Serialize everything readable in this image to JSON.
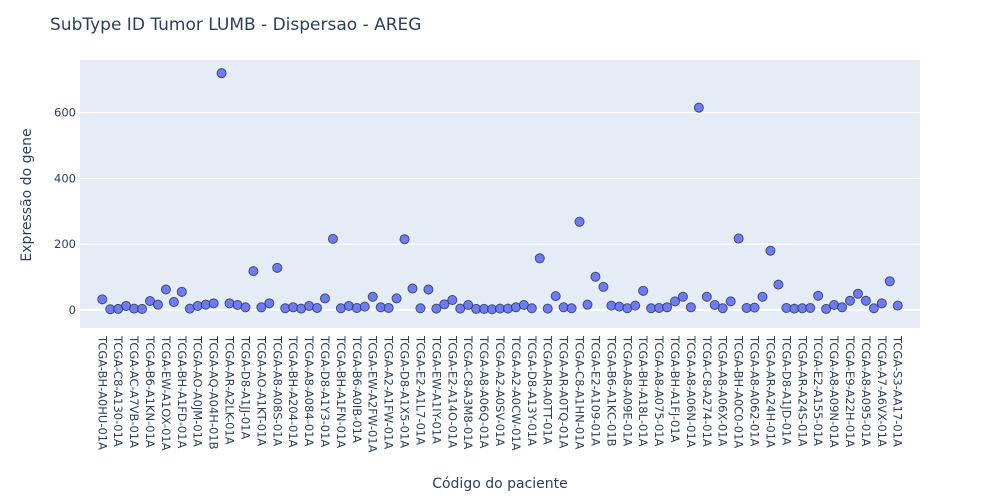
{
  "chart_data": {
    "type": "scatter",
    "title": "SubType ID Tumor LUMB - Dispersao - AREG",
    "xlabel": "Código do paciente",
    "ylabel": "Expressão do gene",
    "ylim": [
      -55,
      760
    ],
    "yticks": [
      0,
      200,
      400,
      600
    ],
    "grid": true,
    "legend": "none",
    "marker_color": "#636efa",
    "plot_bgcolor": "#e5ecf6",
    "tick_labels": [
      "TCGA-BH-A0HU-01A",
      "TCGA-C8-A130-01A",
      "TCGA-AC-A7VB-01A",
      "TCGA-B6-A1KN-01A",
      "TCGA-EW-A1OX-01A",
      "TCGA-BH-A1FD-01A",
      "TCGA-AO-A0JM-01A",
      "TCGA-AQ-A04H-01B",
      "TCGA-AR-A2LK-01A",
      "TCGA-D8-A1JJ-01A",
      "TCGA-AO-A1KT-01A",
      "TCGA-A8-A08S-01A",
      "TCGA-BH-A204-01A",
      "TCGA-A8-A084-01A",
      "TCGA-D8-A1Y3-01A",
      "TCGA-BH-A1FN-01A",
      "TCGA-B6-A0IB-01A",
      "TCGA-EW-A2FW-01A",
      "TCGA-A2-A1FW-01A",
      "TCGA-D8-A1X5-01A",
      "TCGA-E2-A1L7-01A",
      "TCGA-EW-A1IY-01A",
      "TCGA-E2-A14O-01A",
      "TCGA-C8-A3M8-01A",
      "TCGA-A8-A06Q-01A",
      "TCGA-A2-A0SV-01A",
      "TCGA-A2-A0CW-01A",
      "TCGA-D8-A13Y-01A",
      "TCGA-AR-A0TT-01A",
      "TCGA-AR-A0TQ-01A",
      "TCGA-C8-A1HN-01A",
      "TCGA-E2-A109-01A",
      "TCGA-B6-A1KC-01B",
      "TCGA-A8-A09E-01A",
      "TCGA-BH-A18L-01A",
      "TCGA-A8-A075-01A",
      "TCGA-BH-A1FJ-01A",
      "TCGA-A8-A06N-01A",
      "TCGA-C8-A274-01A",
      "TCGA-A8-A06X-01A",
      "TCGA-BH-A0C0-01A",
      "TCGA-A8-A062-01A",
      "TCGA-AR-A24H-01A",
      "TCGA-D8-A1JD-01A",
      "TCGA-AR-A24S-01A",
      "TCGA-E2-A155-01A",
      "TCGA-A8-A09N-01A",
      "TCGA-E9-A22H-01A",
      "TCGA-A8-A095-01A",
      "TCGA-A7-A6VX-01A",
      "TCGA-S3-AA17-01A"
    ],
    "x": [
      0,
      0.5,
      1,
      1.5,
      2,
      2.5,
      3,
      3.5,
      4,
      4.5,
      5,
      5.5,
      6,
      6.5,
      7,
      7.5,
      8,
      8.5,
      9,
      9.5,
      10,
      10.5,
      11,
      11.5,
      12,
      12.5,
      13,
      13.5,
      14,
      14.5,
      15,
      15.5,
      16,
      16.5,
      17,
      17.5,
      18,
      18.5,
      19,
      19.5,
      20,
      20.5,
      21,
      21.5,
      22,
      22.5,
      23,
      23.5,
      24,
      24.5,
      25,
      25.5,
      26,
      26.5,
      27,
      27.5,
      28,
      28.5,
      29,
      29.5,
      30,
      30.5,
      31,
      31.5,
      32,
      32.5,
      33,
      33.5,
      34,
      34.5,
      35,
      35.5,
      36,
      36.5,
      37,
      37.5,
      38,
      38.5,
      39,
      39.5,
      40,
      40.5,
      41,
      41.5,
      42,
      42.5,
      43,
      43.5,
      44,
      44.5,
      45,
      45.5,
      46,
      46.5,
      47,
      47.5,
      48,
      48.5,
      49,
      49.5,
      50
    ],
    "y": [
      32,
      2,
      3,
      12,
      4,
      3,
      27,
      16,
      62,
      24,
      55,
      4,
      12,
      16,
      20,
      720,
      20,
      15,
      8,
      118,
      8,
      20,
      128,
      5,
      8,
      4,
      12,
      6,
      35,
      216,
      5,
      12,
      6,
      10,
      40,
      8,
      6,
      35,
      215,
      65,
      5,
      62,
      4,
      17,
      30,
      4,
      15,
      3,
      3,
      2,
      4,
      4,
      8,
      15,
      5,
      157,
      4,
      42,
      8,
      5,
      268,
      16,
      101,
      70,
      13,
      10,
      5,
      13,
      58,
      5,
      6,
      8,
      26,
      40,
      8,
      615,
      40,
      15,
      5,
      26,
      217,
      6,
      7,
      40,
      180,
      77,
      6,
      4,
      5,
      6,
      43,
      3,
      15,
      8,
      28,
      49,
      28,
      5,
      20,
      87,
      13
    ],
    "y_extra": []
  }
}
